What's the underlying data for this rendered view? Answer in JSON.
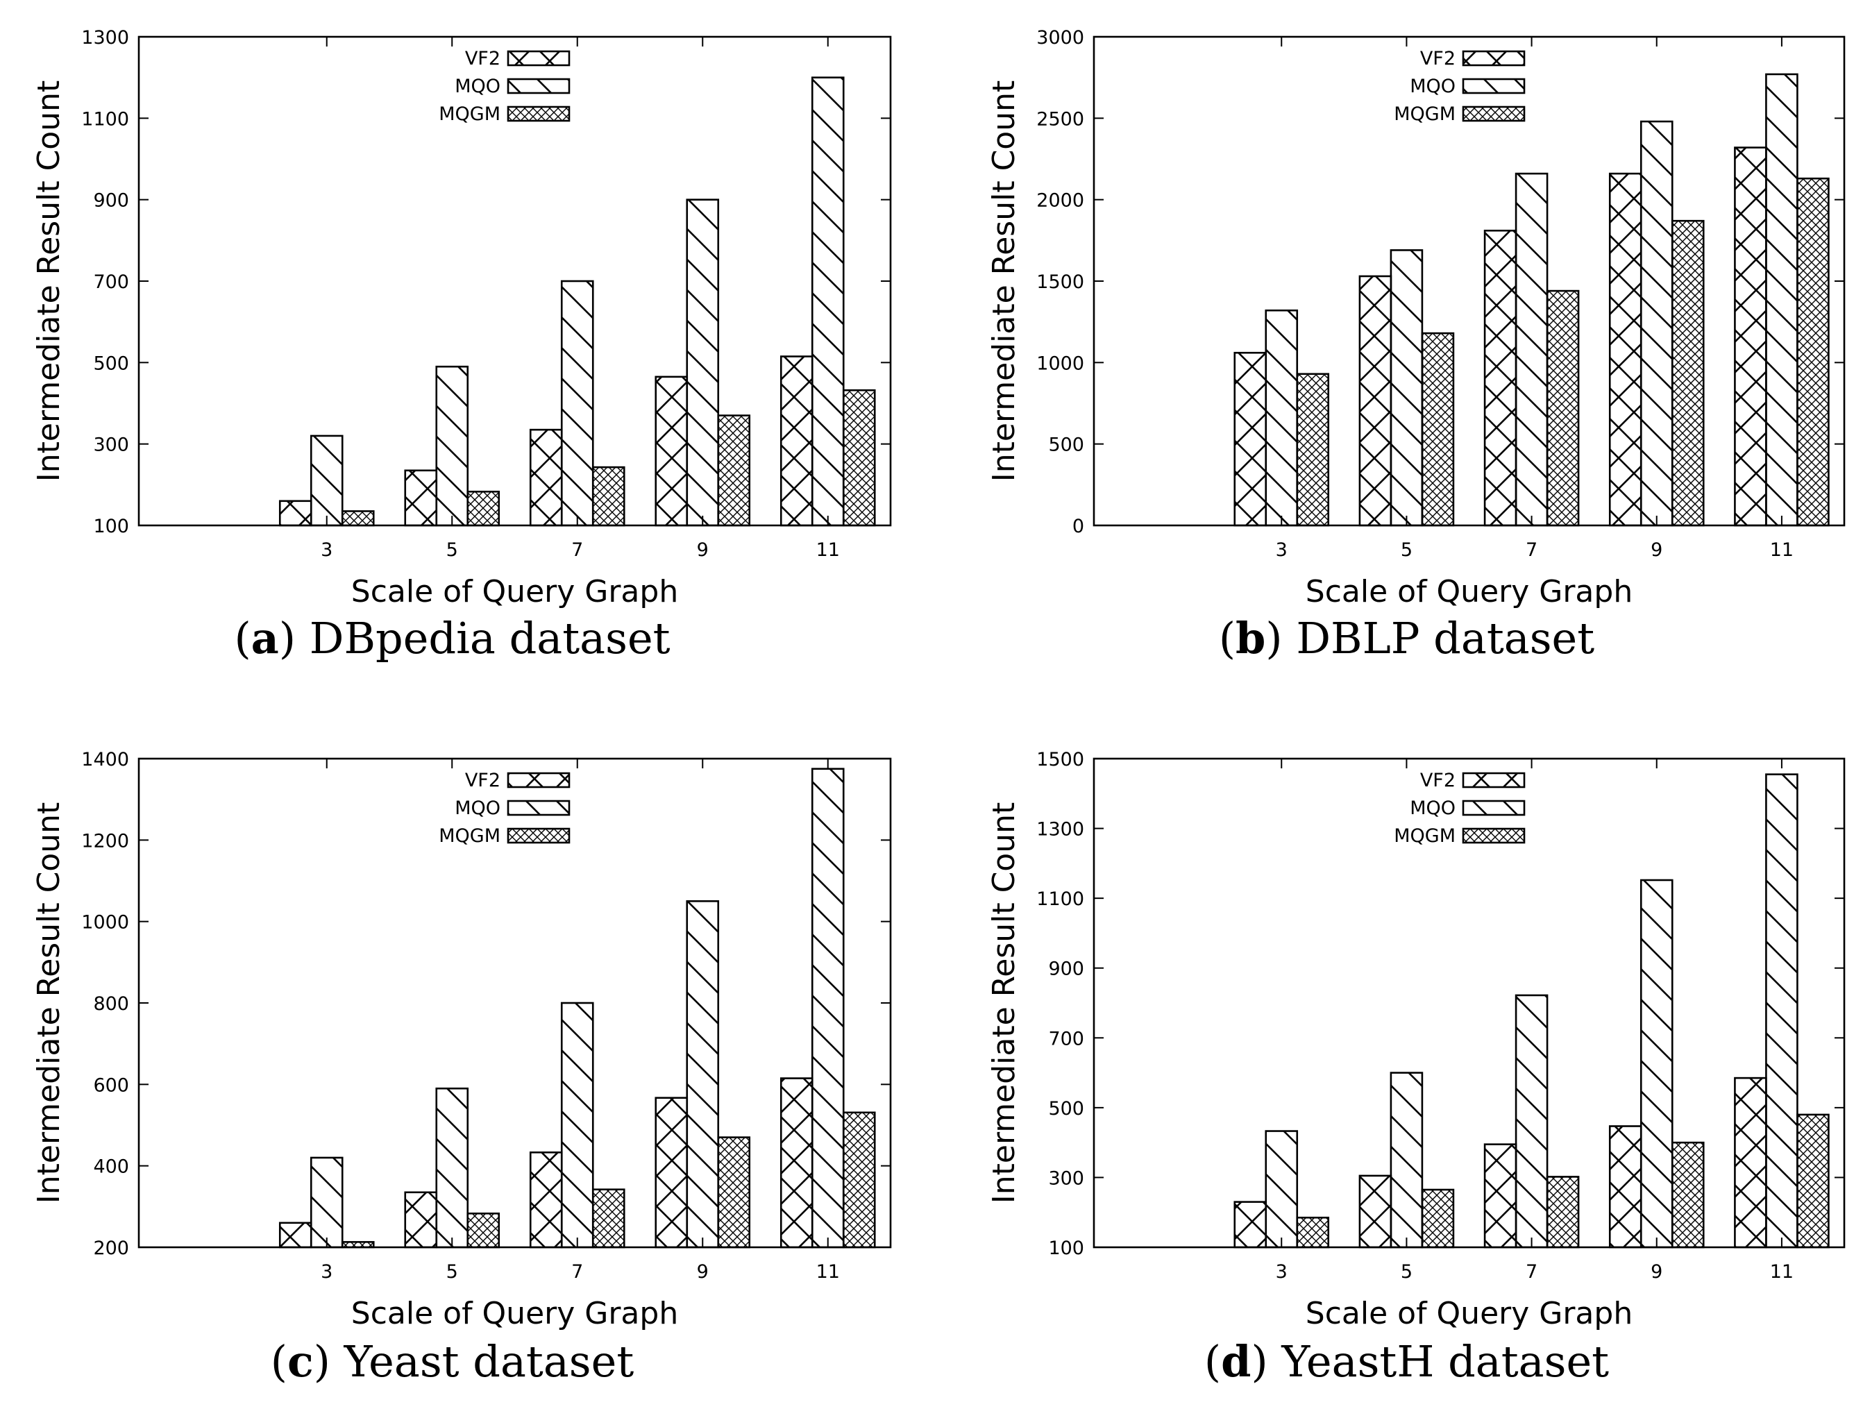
{
  "chart_data": [
    {
      "type": "bar",
      "panel": "a",
      "caption_letter": "a",
      "caption_text": "DBpedia dataset",
      "xlabel": "Scale of Query Graph",
      "ylabel": "Intermediate Result Count",
      "categories": [
        "3",
        "5",
        "7",
        "9",
        "11"
      ],
      "ylim": [
        100,
        1300
      ],
      "yticks": [
        100,
        300,
        500,
        700,
        900,
        1100,
        1300
      ],
      "series": [
        {
          "name": "VF2",
          "values": [
            160,
            235,
            335,
            465,
            515
          ]
        },
        {
          "name": "MQO",
          "values": [
            320,
            490,
            700,
            900,
            1200
          ]
        },
        {
          "name": "MQGM",
          "values": [
            135,
            183,
            243,
            370,
            432
          ]
        }
      ],
      "legend": "top-center"
    },
    {
      "type": "bar",
      "panel": "b",
      "caption_letter": "b",
      "caption_text": "DBLP dataset",
      "xlabel": "Scale of Query Graph",
      "ylabel": "Intermediate Result Count",
      "categories": [
        "3",
        "5",
        "7",
        "9",
        "11"
      ],
      "ylim": [
        0,
        3000
      ],
      "yticks": [
        0,
        500,
        1000,
        1500,
        2000,
        2500,
        3000
      ],
      "series": [
        {
          "name": "VF2",
          "values": [
            1060,
            1530,
            1810,
            2160,
            2320
          ]
        },
        {
          "name": "MQO",
          "values": [
            1320,
            1690,
            2160,
            2480,
            2770
          ]
        },
        {
          "name": "MQGM",
          "values": [
            930,
            1180,
            1440,
            1870,
            2130
          ]
        }
      ],
      "legend": "top-center"
    },
    {
      "type": "bar",
      "panel": "c",
      "caption_letter": "c",
      "caption_text": "Yeast dataset",
      "xlabel": "Scale of Query Graph",
      "ylabel": "Intermediate Result Count",
      "categories": [
        "3",
        "5",
        "7",
        "9",
        "11"
      ],
      "ylim": [
        200,
        1400
      ],
      "yticks": [
        200,
        400,
        600,
        800,
        1000,
        1200,
        1400
      ],
      "series": [
        {
          "name": "VF2",
          "values": [
            260,
            335,
            433,
            567,
            615
          ]
        },
        {
          "name": "MQO",
          "values": [
            420,
            590,
            800,
            1050,
            1375
          ]
        },
        {
          "name": "MQGM",
          "values": [
            213,
            283,
            342,
            470,
            531
          ]
        }
      ],
      "legend": "top-center"
    },
    {
      "type": "bar",
      "panel": "d",
      "caption_letter": "d",
      "caption_text": "YeastH dataset",
      "xlabel": "Scale of Query Graph",
      "ylabel": "Intermediate Result Count",
      "categories": [
        "3",
        "5",
        "7",
        "9",
        "11"
      ],
      "ylim": [
        100,
        1500
      ],
      "yticks": [
        100,
        300,
        500,
        700,
        900,
        1100,
        1300,
        1500
      ],
      "series": [
        {
          "name": "VF2",
          "values": [
            230,
            305,
            395,
            447,
            585
          ]
        },
        {
          "name": "MQO",
          "values": [
            433,
            600,
            822,
            1152,
            1455
          ]
        },
        {
          "name": "MQGM",
          "values": [
            185,
            265,
            302,
            400,
            480
          ]
        }
      ],
      "legend": "top-center"
    }
  ]
}
